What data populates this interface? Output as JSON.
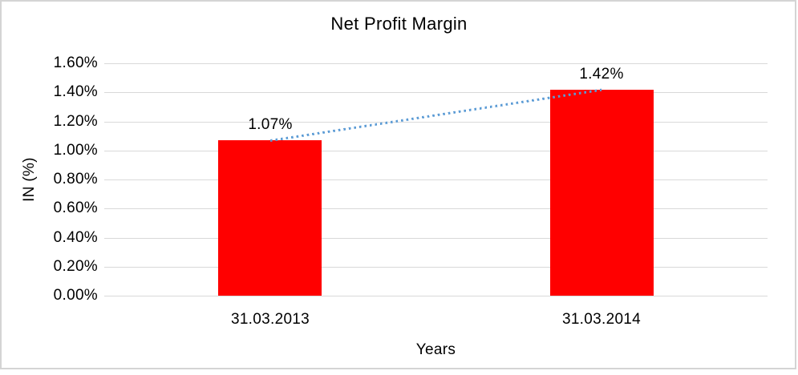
{
  "chart_data": {
    "type": "bar",
    "title": "Net Profit Margin",
    "categories": [
      "31.03.2013",
      "31.03.2014"
    ],
    "values": [
      1.07,
      1.42
    ],
    "data_labels": [
      "1.07%",
      "1.42%"
    ],
    "xlabel": "Years",
    "ylabel": "IN (%)",
    "ylim": [
      0,
      1.6
    ],
    "ytick_step": 0.2,
    "ytick_labels": [
      "1.60%",
      "1.40%",
      "1.20%",
      "1.00%",
      "0.80%",
      "0.60%",
      "0.40%",
      "0.20%",
      "0.00%"
    ],
    "grid": true,
    "legend": false,
    "bar_color": "#ff0000",
    "trendline": {
      "type": "linear",
      "style": "dotted",
      "color": "#5b9bd5"
    },
    "gridline_color": "#d9d9d9",
    "frame_color": "#d4d4d4",
    "text_color": "#000000"
  }
}
